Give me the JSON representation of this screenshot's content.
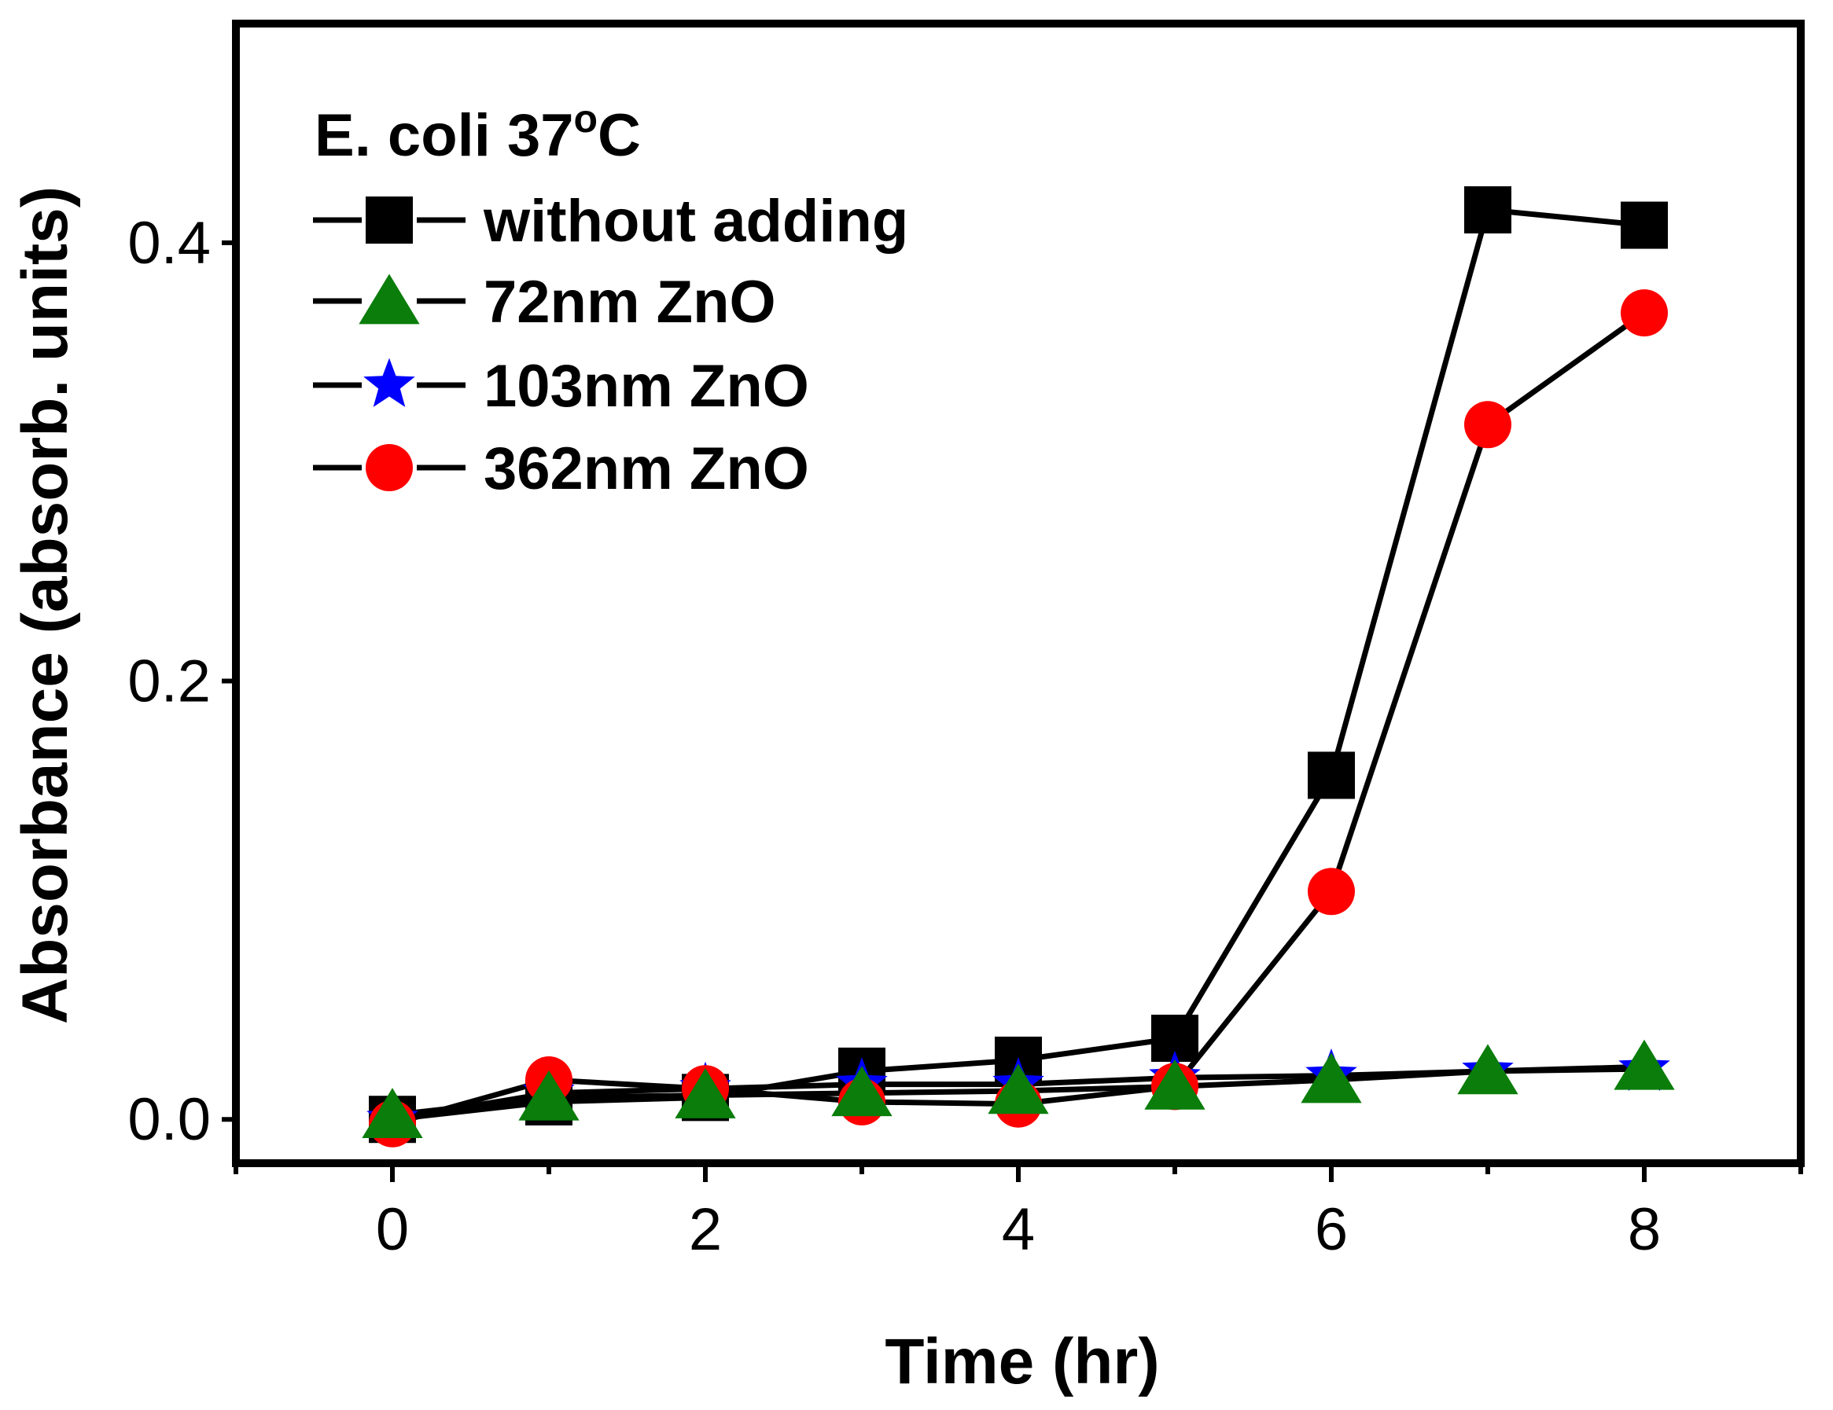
{
  "chart_data": {
    "type": "line",
    "title": "",
    "xlabel": "Time (hr)",
    "ylabel": "Absorbance (absorb. units)",
    "xlim": [
      -1,
      9
    ],
    "ylim": [
      -0.02,
      0.5
    ],
    "x_ticks": [
      "0",
      "2",
      "4",
      "6",
      "8"
    ],
    "x_tick_values": [
      0,
      2,
      4,
      6,
      8
    ],
    "y_ticks": [
      "0.0",
      "0.2",
      "0.4"
    ],
    "y_tick_values": [
      0.0,
      0.2,
      0.4
    ],
    "legend_title": {
      "prefix": "E. coli 37",
      "superscript": "o",
      "suffix": "C"
    },
    "legend_position": "top-left",
    "series": [
      {
        "name": "without adding",
        "marker": "square",
        "color": "#000000",
        "x": [
          0,
          1,
          2,
          3,
          4,
          5,
          6,
          7,
          8
        ],
        "values": [
          0.0,
          0.008,
          0.01,
          0.022,
          0.027,
          0.037,
          0.157,
          0.415,
          0.408
        ]
      },
      {
        "name": "72nm ZnO",
        "marker": "triangle",
        "color": "#0a7d0a",
        "x": [
          0,
          1,
          2,
          3,
          4,
          5,
          6,
          7,
          8
        ],
        "values": [
          0.002,
          0.01,
          0.011,
          0.012,
          0.013,
          0.015,
          0.018,
          0.022,
          0.024
        ]
      },
      {
        "name": "103nm ZnO",
        "marker": "star",
        "color": "#0000ff",
        "x": [
          0,
          1,
          2,
          3,
          4,
          5,
          6,
          7,
          8
        ],
        "values": [
          0.0,
          0.012,
          0.014,
          0.016,
          0.016,
          0.019,
          0.02,
          0.022,
          0.023
        ]
      },
      {
        "name": "362nm ZnO",
        "marker": "circle",
        "color": "#ff0000",
        "x": [
          0,
          1,
          2,
          3,
          4,
          5,
          6,
          7,
          8
        ],
        "values": [
          -0.002,
          0.018,
          0.014,
          0.008,
          0.007,
          0.015,
          0.104,
          0.317,
          0.368
        ]
      }
    ]
  }
}
